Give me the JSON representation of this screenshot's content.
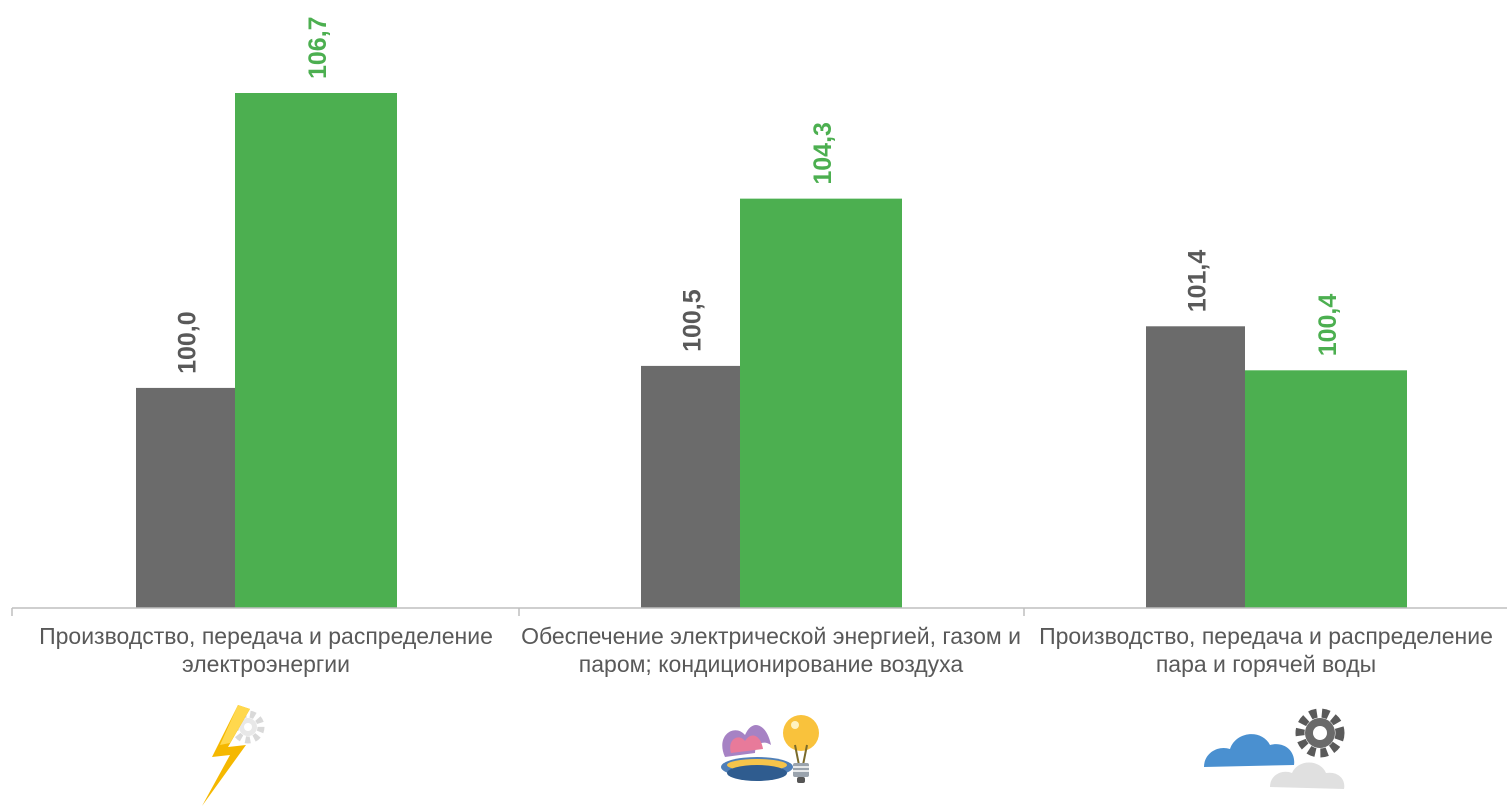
{
  "chart_data": {
    "type": "bar",
    "categories": [
      "Производство, передача и распределение электроэнергии",
      "Обеспечение электрической энергией, газом и паром; кондиционирование воздуха",
      "Производство, передача и распределение пара и горячей воды"
    ],
    "series": [
      {
        "color": "#6b6b6b",
        "values": [
          100.0,
          100.5,
          101.4
        ],
        "labels": [
          "100,0",
          "100,5",
          "101,4"
        ]
      },
      {
        "color": "#4caf50",
        "values": [
          106.7,
          104.3,
          100.4
        ],
        "labels": [
          "106,7",
          "104,3",
          "100,4"
        ]
      }
    ],
    "ylim": [
      95.0,
      106.7
    ],
    "title": "",
    "xlabel": "",
    "ylabel": "",
    "grid": false,
    "legend": "none",
    "category_icons": [
      "lightning-gear-icon",
      "gas-burner-lightbulb-icon",
      "cloud-gear-icon"
    ]
  }
}
